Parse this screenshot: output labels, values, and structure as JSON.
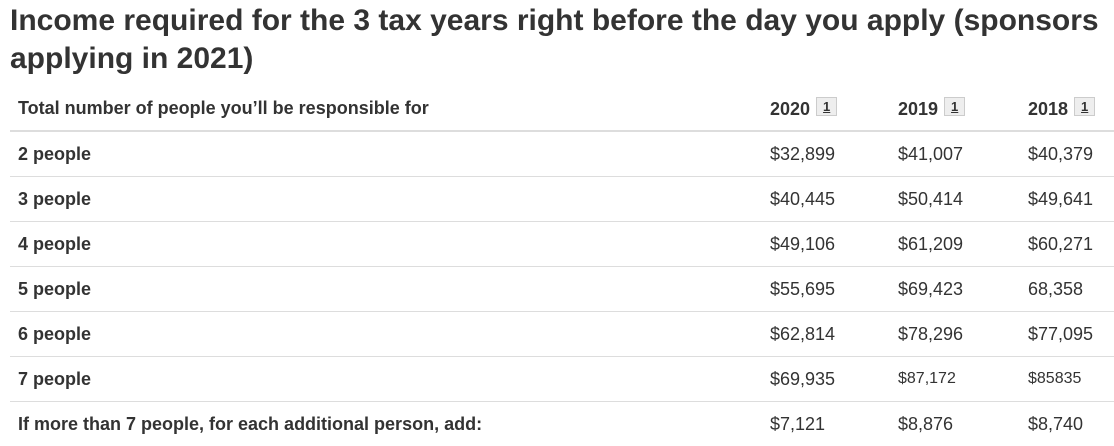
{
  "header": {
    "title": "Income required for the 3 tax years right before the day you apply (sponsors applying in 2021)"
  },
  "table": {
    "columns": [
      {
        "label": "Total number of people you’ll be responsible for"
      },
      {
        "label": "2020",
        "note": "1"
      },
      {
        "label": "2019",
        "note": "1"
      },
      {
        "label": "2018",
        "note": "1"
      }
    ],
    "rows": [
      [
        "2 people",
        "$32,899",
        "$41,007",
        "$40,379"
      ],
      [
        "3 people",
        "$40,445",
        "$50,414",
        "$49,641"
      ],
      [
        "4 people",
        "$49,106",
        "$61,209",
        "$60,271"
      ],
      [
        "5 people",
        "$55,695",
        "$69,423",
        "68,358"
      ],
      [
        "6 people",
        "$62,814",
        "$78,296",
        "$77,095"
      ],
      [
        "7 people",
        "$69,935",
        "$87,172",
        "$85835"
      ],
      [
        "If more than 7 people, for each additional person, add:",
        "$7,121",
        "$8,876",
        "$8,740"
      ]
    ]
  }
}
